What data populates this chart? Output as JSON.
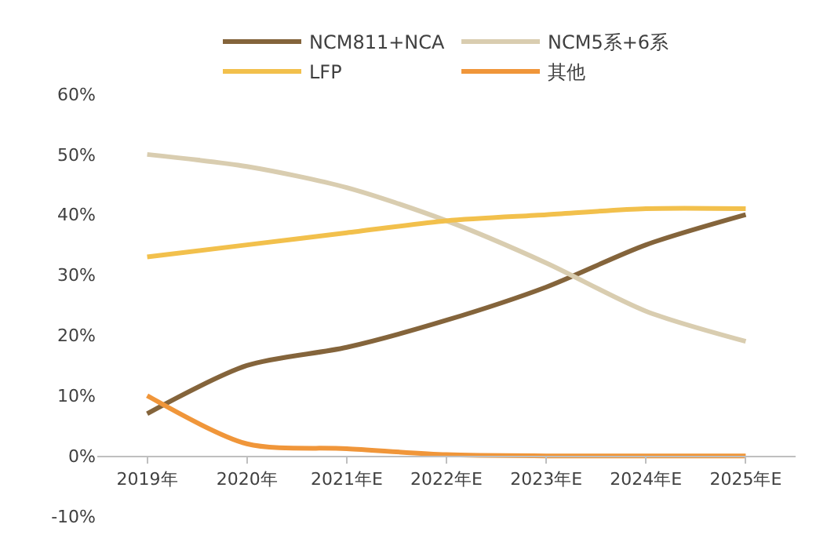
{
  "chart_data": {
    "type": "line",
    "categories": [
      "2019年",
      "2020年",
      "2021年E",
      "2022年E",
      "2023年E",
      "2024年E",
      "2025年E"
    ],
    "series": [
      {
        "name": "NCM811+NCA",
        "color": "#84643b",
        "values": [
          7,
          15,
          18,
          22.5,
          28,
          35,
          40
        ]
      },
      {
        "name": "NCM5系+6系",
        "color": "#d9cdb0",
        "values": [
          50,
          48,
          44.5,
          39,
          32,
          24,
          19
        ]
      },
      {
        "name": "LFP",
        "color": "#f2c04c",
        "values": [
          33,
          35,
          37,
          39,
          40,
          41,
          41
        ]
      },
      {
        "name": "其他",
        "color": "#f0963a",
        "values": [
          10,
          2,
          1.2,
          0.2,
          0,
          0,
          0
        ]
      }
    ],
    "ylim": [
      -10,
      60
    ],
    "yticks": [
      {
        "value": -10,
        "label": "-10%"
      },
      {
        "value": 0,
        "label": "0%"
      },
      {
        "value": 10,
        "label": "10%"
      },
      {
        "value": 20,
        "label": "20%"
      },
      {
        "value": 30,
        "label": "30%"
      },
      {
        "value": 40,
        "label": "40%"
      },
      {
        "value": 50,
        "label": "50%"
      },
      {
        "value": 60,
        "label": "60%"
      }
    ],
    "grid": false,
    "legend": "top",
    "marker": "none",
    "line_style": "solid"
  }
}
